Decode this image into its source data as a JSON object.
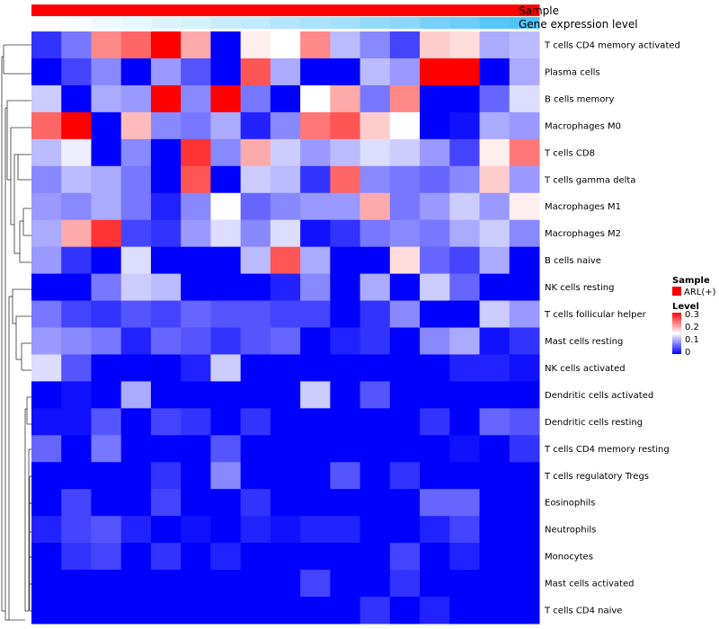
{
  "chart_data": {
    "type": "heatmap",
    "title": "",
    "annotation_tracks": [
      {
        "name": "Sample",
        "label": "Sample"
      },
      {
        "name": "Gene expression level",
        "label": "Gene expression level"
      }
    ],
    "sample_colors": [
      "#ff0000"
    ],
    "expression_values": [
      0.0,
      0.03,
      0.06,
      0.1,
      0.13,
      0.17,
      0.2,
      0.24,
      0.27,
      0.31,
      0.35,
      0.39,
      0.43,
      0.48,
      0.52,
      0.57,
      0.62,
      0.67,
      0.72,
      0.78,
      0.84,
      0.92,
      0.96,
      1.0
    ],
    "rows": [
      "T cells CD4 memory activated",
      "Plasma cells",
      "B cells memory",
      "Macrophages M0",
      "T cells CD8",
      "T cells gamma delta",
      "Macrophages M1",
      "Macrophages M2",
      "B cells naive",
      "NK cells resting",
      "T cells follicular helper",
      "Mast cells resting",
      "NK cells activated",
      "Dendritic cells activated",
      "Dendritic cells resting",
      "T cells CD4 memory resting",
      "T cells regulatory  Tregs",
      "Eosinophils",
      "Neutrophils",
      "Monocytes",
      "Mast cells activated",
      "T cells CD4 naive"
    ],
    "values": [
      [
        0.03,
        0.07,
        0.22,
        0.24,
        0.3,
        0.2,
        0.0,
        0.16,
        0.15,
        0.22,
        0.11,
        0.08,
        0.04,
        0.18,
        0.17,
        0.1,
        0.11
      ],
      [
        0.0,
        0.04,
        0.08,
        0.0,
        0.09,
        0.05,
        0.0,
        0.25,
        0.1,
        0.0,
        0.0,
        0.11,
        0.09,
        0.3,
        0.31,
        0.0,
        0.1
      ],
      [
        0.12,
        0.0,
        0.1,
        0.09,
        0.3,
        0.08,
        0.3,
        0.07,
        0.0,
        0.15,
        0.2,
        0.07,
        0.22,
        0.0,
        0.0,
        0.06,
        0.13
      ],
      [
        0.24,
        0.3,
        0.0,
        0.19,
        0.08,
        0.07,
        0.1,
        0.02,
        0.08,
        0.23,
        0.25,
        0.18,
        0.15,
        0.0,
        0.01,
        0.1,
        0.09
      ],
      [
        0.11,
        0.14,
        0.0,
        0.08,
        0.0,
        0.27,
        0.08,
        0.2,
        0.12,
        0.09,
        0.11,
        0.13,
        0.12,
        0.09,
        0.04,
        0.16,
        0.23
      ],
      [
        0.08,
        0.11,
        0.1,
        0.07,
        0.0,
        0.25,
        0.0,
        0.12,
        0.11,
        0.03,
        0.24,
        0.08,
        0.07,
        0.06,
        0.08,
        0.18,
        0.09
      ],
      [
        0.09,
        0.08,
        0.1,
        0.07,
        0.02,
        0.08,
        0.15,
        0.06,
        0.08,
        0.09,
        0.09,
        0.2,
        0.07,
        0.09,
        0.12,
        0.09,
        0.16
      ],
      [
        0.1,
        0.2,
        0.27,
        0.04,
        0.03,
        0.09,
        0.13,
        0.08,
        0.13,
        0.01,
        0.03,
        0.07,
        0.08,
        0.07,
        0.1,
        0.12,
        0.08
      ],
      [
        0.09,
        0.03,
        0.0,
        0.13,
        0.0,
        0.0,
        0.0,
        0.11,
        0.25,
        0.1,
        0.0,
        0.0,
        0.17,
        0.06,
        0.04,
        0.1,
        0.0
      ],
      [
        0.0,
        0.0,
        0.07,
        0.12,
        0.11,
        0.0,
        0.0,
        0.0,
        0.02,
        0.08,
        0.0,
        0.1,
        0.0,
        0.12,
        0.06,
        0.0,
        0.0
      ],
      [
        0.07,
        0.04,
        0.03,
        0.05,
        0.04,
        0.06,
        0.05,
        0.05,
        0.04,
        0.04,
        0.0,
        0.03,
        0.08,
        0.0,
        0.0,
        0.12,
        0.09
      ],
      [
        0.09,
        0.08,
        0.07,
        0.02,
        0.06,
        0.05,
        0.03,
        0.05,
        0.06,
        0.0,
        0.02,
        0.03,
        0.0,
        0.08,
        0.1,
        0.01,
        0.03
      ],
      [
        0.13,
        0.05,
        0.0,
        0.0,
        0.0,
        0.02,
        0.12,
        0.0,
        0.0,
        0.0,
        0.0,
        0.0,
        0.0,
        0.0,
        0.02,
        0.02,
        0.01
      ],
      [
        0.0,
        0.01,
        0.0,
        0.1,
        0.0,
        0.0,
        0.0,
        0.0,
        0.0,
        0.12,
        0.0,
        0.05,
        0.0,
        0.0,
        0.0,
        0.0,
        0.0
      ],
      [
        0.01,
        0.01,
        0.05,
        0.0,
        0.04,
        0.03,
        0.0,
        0.03,
        0.0,
        0.0,
        0.0,
        0.0,
        0.0,
        0.03,
        0.0,
        0.06,
        0.05
      ],
      [
        0.06,
        0.0,
        0.07,
        0.0,
        0.0,
        0.0,
        0.05,
        0.0,
        0.0,
        0.0,
        0.0,
        0.0,
        0.0,
        0.0,
        0.01,
        0.0,
        0.03
      ],
      [
        0.0,
        0.0,
        0.0,
        0.0,
        0.03,
        0.0,
        0.08,
        0.0,
        0.0,
        0.0,
        0.05,
        0.0,
        0.03,
        0.0,
        0.0,
        0.0,
        0.0
      ],
      [
        0.0,
        0.04,
        0.0,
        0.0,
        0.04,
        0.0,
        0.0,
        0.03,
        0.0,
        0.0,
        0.0,
        0.0,
        0.0,
        0.06,
        0.06,
        0.0,
        0.0
      ],
      [
        0.02,
        0.04,
        0.05,
        0.02,
        0.0,
        0.01,
        0.0,
        0.02,
        0.01,
        0.02,
        0.02,
        0.0,
        0.0,
        0.02,
        0.04,
        0.0,
        0.0
      ],
      [
        0.0,
        0.03,
        0.04,
        0.0,
        0.03,
        0.0,
        0.02,
        0.0,
        0.0,
        0.0,
        0.0,
        0.0,
        0.04,
        0.0,
        0.02,
        0.0,
        0.0
      ],
      [
        0.0,
        0.0,
        0.0,
        0.0,
        0.0,
        0.0,
        0.0,
        0.0,
        0.0,
        0.04,
        0.0,
        0.0,
        0.03,
        0.0,
        0.0,
        0.0,
        0.0
      ],
      [
        0.0,
        0.0,
        0.0,
        0.0,
        0.0,
        0.0,
        0.0,
        0.0,
        0.0,
        0.0,
        0.0,
        0.03,
        0.0,
        0.02,
        0.0,
        0.0,
        0.0
      ]
    ],
    "color_scale": {
      "min": 0,
      "max": 0.3,
      "stops": [
        {
          "value": 0,
          "color": "#0000ff"
        },
        {
          "value": 0.15,
          "color": "#ffffff"
        },
        {
          "value": 0.3,
          "color": "#ff0000"
        }
      ]
    },
    "expression_colors": {
      "low": "#ffffff",
      "high": "#4fc3f7"
    },
    "dendrogram": "rows",
    "legend": {
      "position": "right",
      "sample_title": "Sample",
      "sample_entry": "ARL(+)",
      "sample_entry_color": "#ff0000",
      "level_title": "Level",
      "level_ticks": [
        "0.3",
        "0.2",
        "0.1",
        "0"
      ]
    }
  }
}
